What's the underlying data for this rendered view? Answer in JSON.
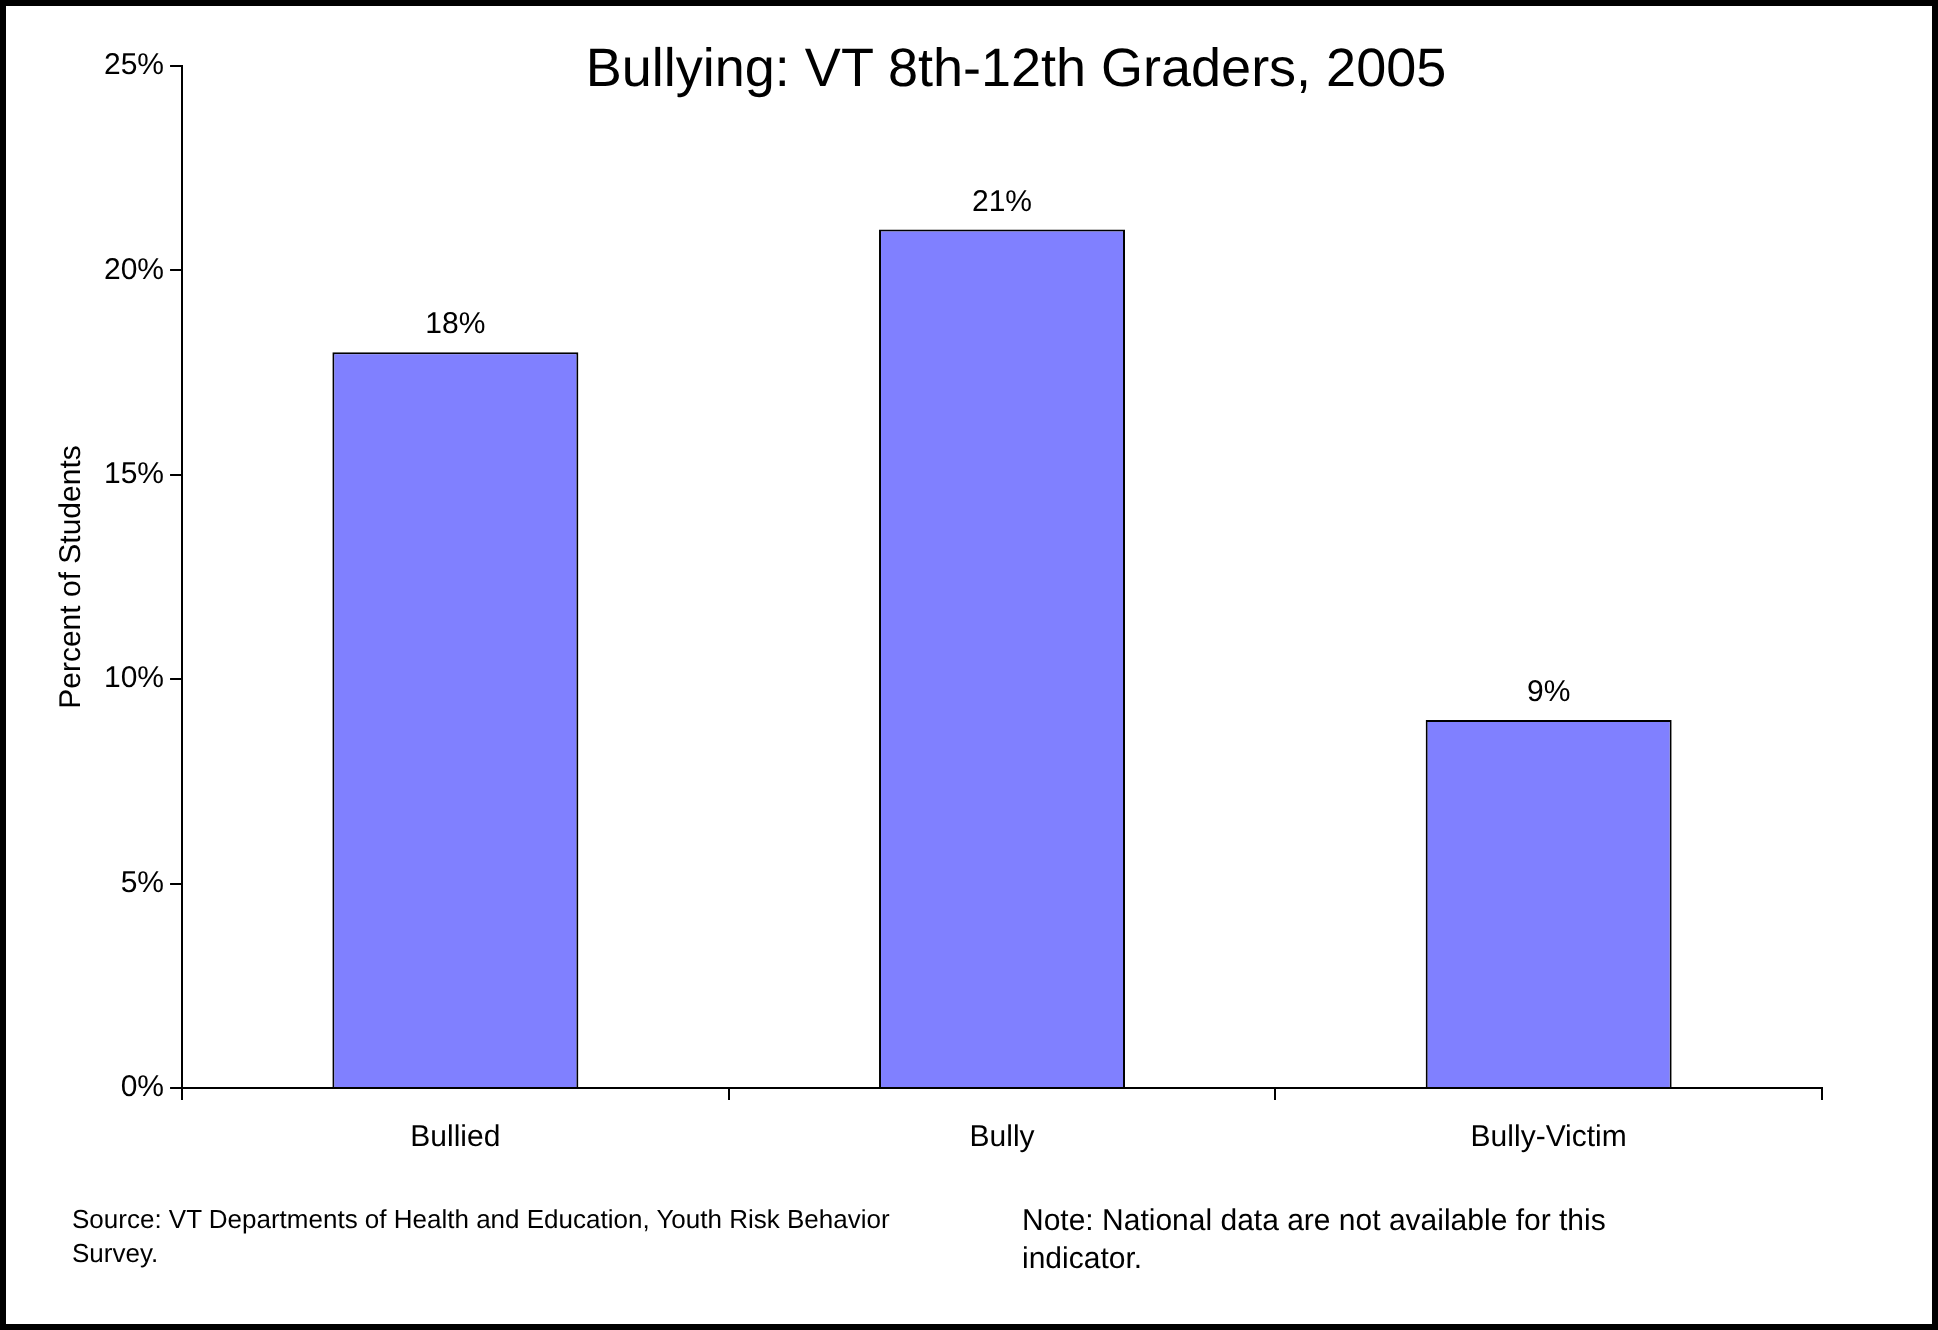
{
  "chart_data": {
    "type": "bar",
    "title": "Bullying: VT 8th-12th Graders, 2005",
    "ylabel": "Percent of Students",
    "categories": [
      "Bullied",
      "Bully",
      "Bully-Victim"
    ],
    "values": [
      18,
      21,
      9
    ],
    "color": "#8080ff",
    "value_labels": [
      "18%",
      "21%",
      "9%"
    ],
    "ylim": [
      0,
      25
    ],
    "yticks": [
      {
        "value": 0,
        "label": "0%"
      },
      {
        "value": 5,
        "label": "5%"
      },
      {
        "value": 10,
        "label": "10%"
      },
      {
        "value": 15,
        "label": "15%"
      },
      {
        "value": 20,
        "label": "20%"
      },
      {
        "value": 25,
        "label": "25%"
      }
    ],
    "grid": false,
    "legend": false,
    "annotations": [
      "Source: VT Departments of Health and Education, Youth Risk Behavior Survey.",
      "Note: National data are not available for this indicator."
    ]
  }
}
